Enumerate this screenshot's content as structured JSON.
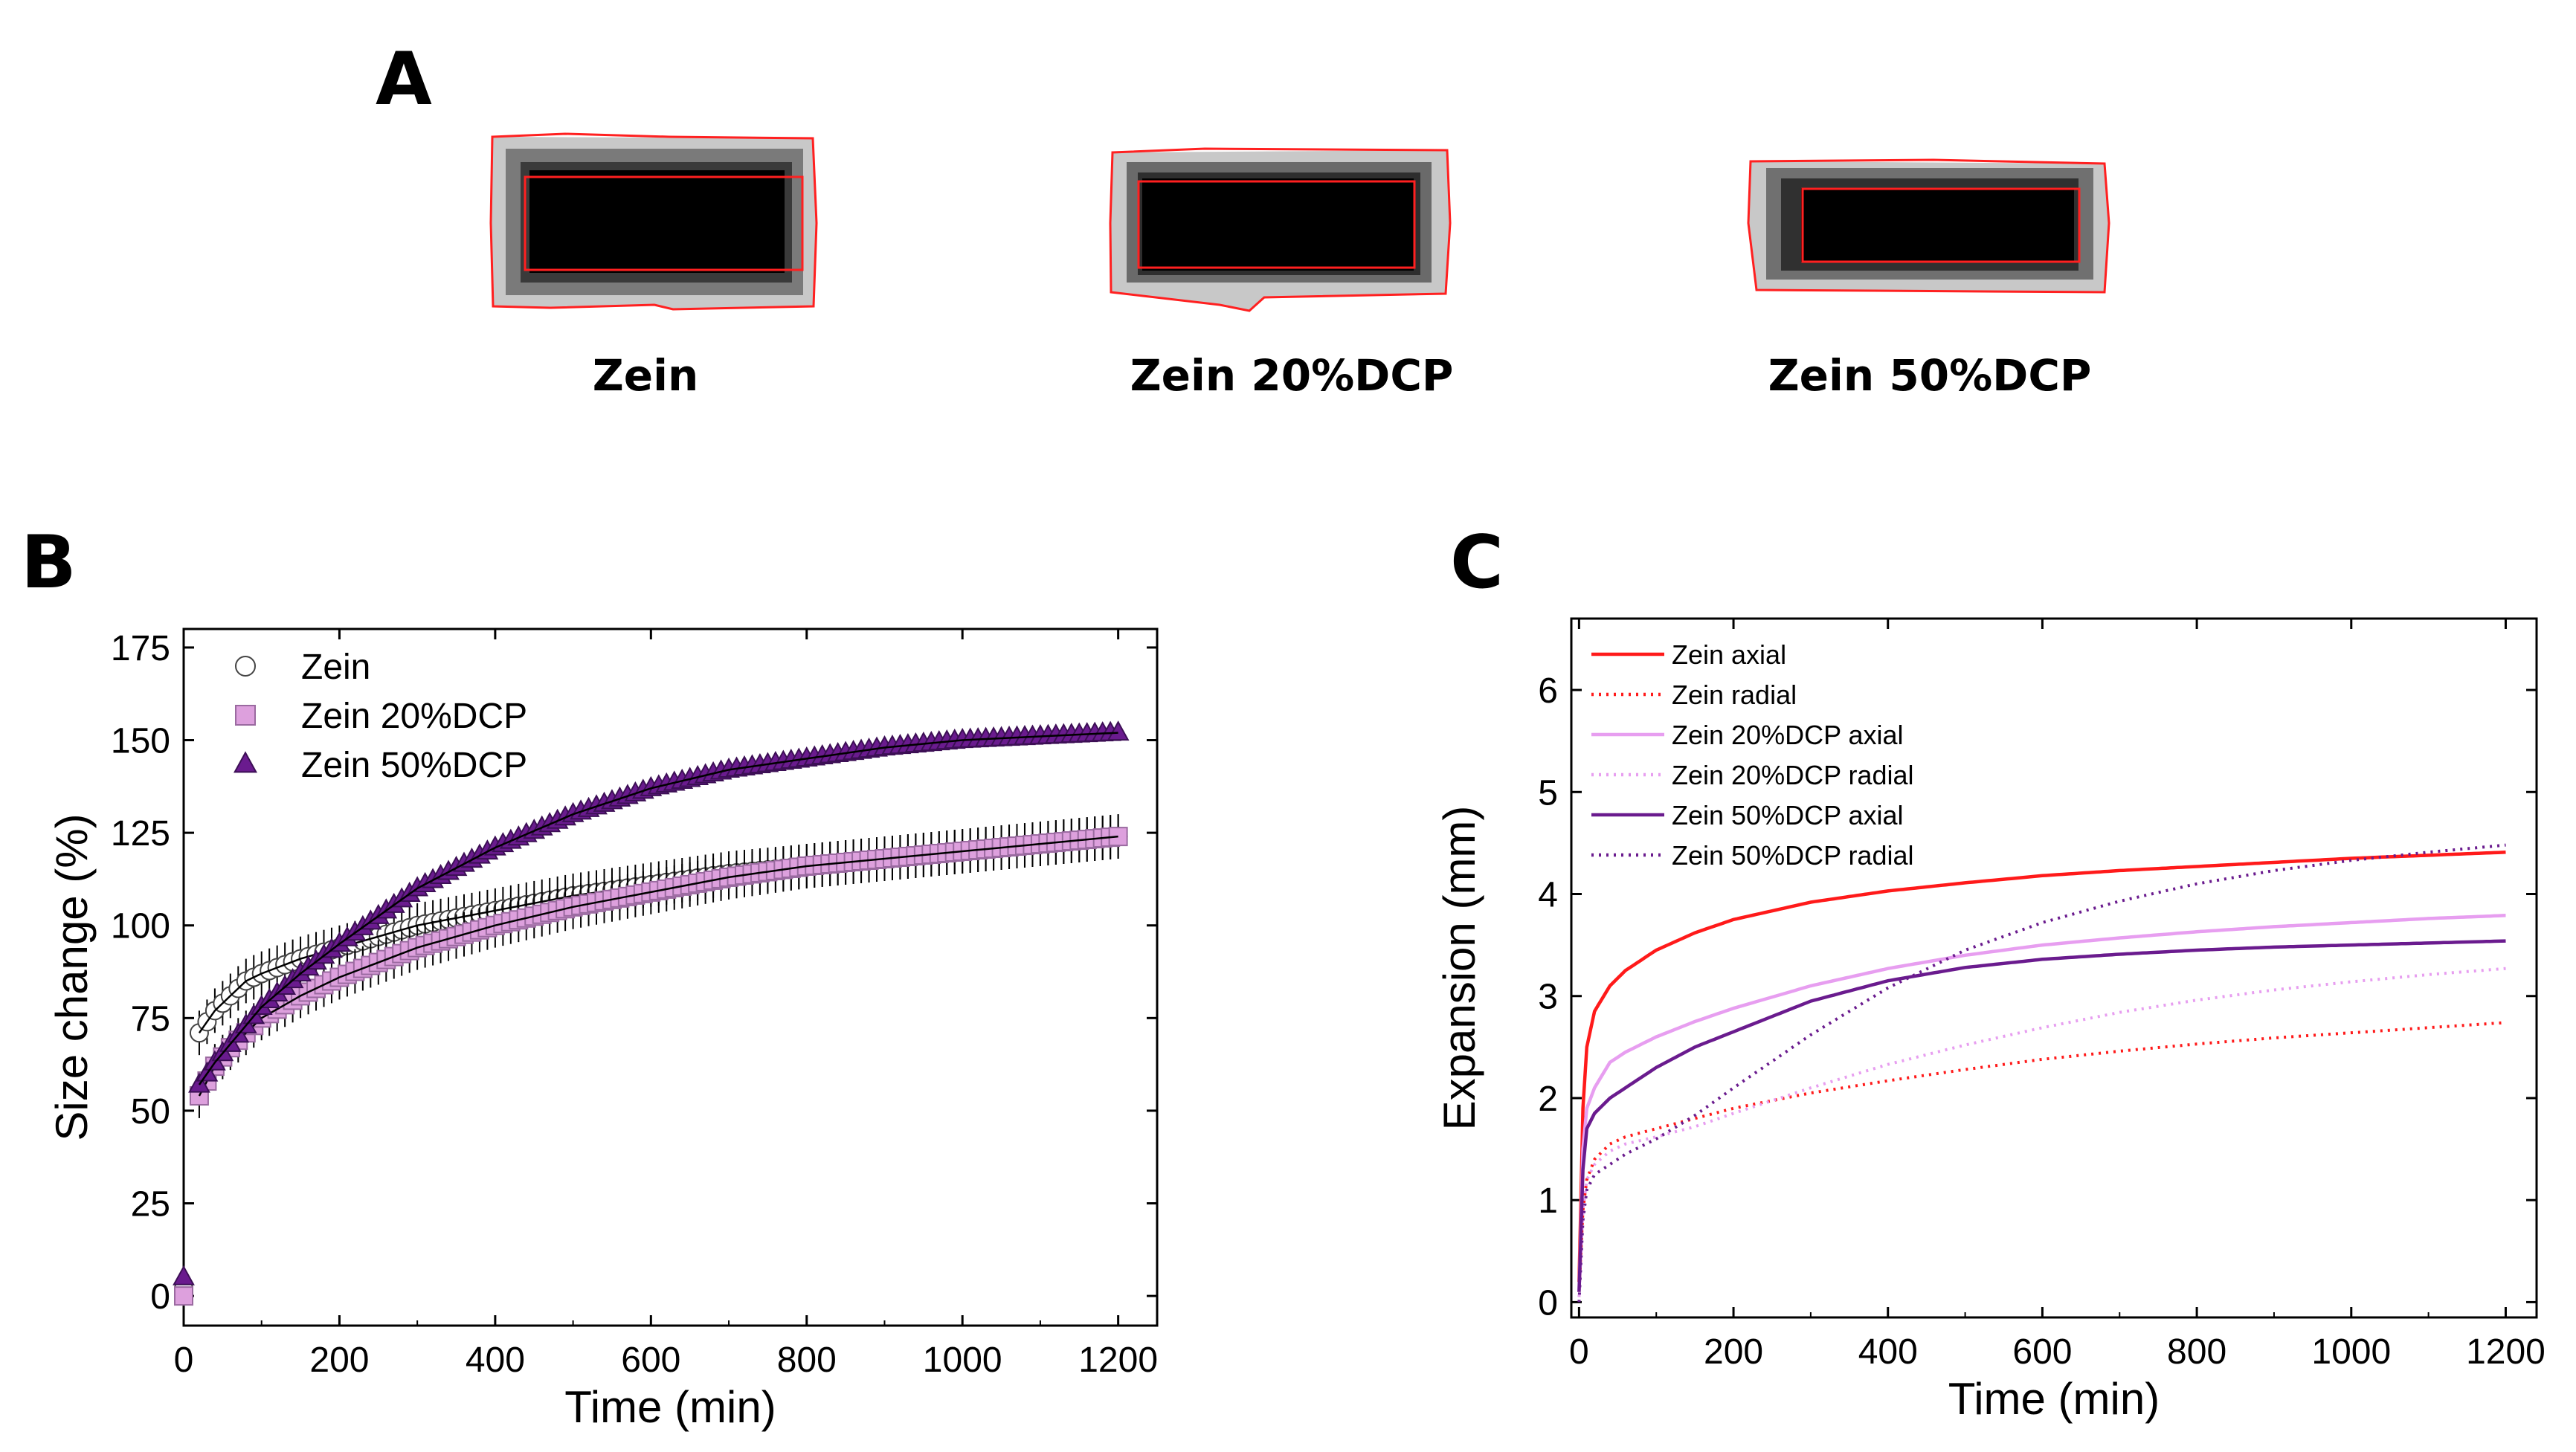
{
  "panels": {
    "a": "A",
    "b": "B",
    "c": "C"
  },
  "samples": [
    "Zein",
    "Zein 20%DCP",
    "Zein 50%DCP"
  ],
  "colors": {
    "zein": "#ff1a1a",
    "dcp20": "#e79ef0",
    "dcp20_marker": "#dda0dd",
    "dcp50": "#6a1b8e",
    "outline": "#ff2020"
  },
  "chart_data": [
    {
      "type": "scatter",
      "panel": "B",
      "title": "",
      "xlabel": "Time (min)",
      "ylabel": "Size change (%)",
      "xlim": [
        0,
        1250
      ],
      "ylim": [
        -8,
        180
      ],
      "x_ticks": [
        "0",
        "200",
        "400",
        "600",
        "800",
        "1000",
        "1200"
      ],
      "y_ticks": [
        "0",
        "25",
        "50",
        "75",
        "100",
        "125",
        "150",
        "175"
      ],
      "legend": [
        "Zein",
        "Zein 20%DCP",
        "Zein 50%DCP"
      ],
      "series": [
        {
          "name": "Zein",
          "marker": "circle",
          "x": [
            0,
            20,
            40,
            60,
            80,
            100,
            150,
            200,
            300,
            400,
            500,
            600,
            700,
            800,
            900,
            1000,
            1100,
            1200
          ],
          "y": [
            2,
            71,
            77,
            81,
            85,
            87,
            91,
            94,
            100,
            104,
            108,
            111,
            114,
            116,
            118,
            120,
            122,
            124
          ],
          "error": 6
        },
        {
          "name": "Zein 20%DCP",
          "marker": "square",
          "x": [
            0,
            20,
            40,
            60,
            80,
            100,
            150,
            200,
            300,
            400,
            500,
            600,
            700,
            800,
            900,
            1000,
            1100,
            1200
          ],
          "y": [
            0,
            54,
            62,
            67,
            71,
            75,
            81,
            86,
            94,
            100,
            105,
            109,
            113,
            116,
            118,
            120,
            122,
            124
          ],
          "error": 6
        },
        {
          "name": "Zein 50%DCP",
          "marker": "triangle",
          "x": [
            0,
            20,
            40,
            60,
            80,
            100,
            150,
            200,
            300,
            400,
            500,
            600,
            700,
            800,
            900,
            1000,
            1100,
            1200
          ],
          "y": [
            5,
            57,
            63,
            68,
            73,
            78,
            87,
            95,
            110,
            121,
            130,
            137,
            142,
            145,
            148,
            150,
            151,
            152
          ],
          "error": 2
        }
      ]
    },
    {
      "type": "line",
      "panel": "C",
      "title": "",
      "xlabel": "Time (min)",
      "ylabel": "Expansion (mm)",
      "xlim": [
        -10,
        1240
      ],
      "ylim": [
        -0.15,
        6.7
      ],
      "x_ticks": [
        "0",
        "200",
        "400",
        "600",
        "800",
        "1000",
        "1200"
      ],
      "y_ticks": [
        "0",
        "1",
        "2",
        "3",
        "4",
        "5",
        "6"
      ],
      "legend": [
        "Zein axial",
        "Zein radial",
        "Zein 20%DCP axial",
        "Zein 20%DCP radial",
        "Zein 50%DCP axial",
        "Zein 50%DCP radial"
      ],
      "series": [
        {
          "name": "Zein axial",
          "style": "solid",
          "x": [
            0,
            5,
            10,
            20,
            40,
            60,
            100,
            150,
            200,
            300,
            400,
            500,
            600,
            700,
            800,
            900,
            1000,
            1100,
            1200
          ],
          "y": [
            0.2,
            1.9,
            2.5,
            2.85,
            3.1,
            3.25,
            3.45,
            3.62,
            3.75,
            3.92,
            4.03,
            4.11,
            4.18,
            4.23,
            4.27,
            4.31,
            4.35,
            4.38,
            4.41
          ]
        },
        {
          "name": "Zein radial",
          "style": "dotted",
          "x": [
            0,
            5,
            10,
            20,
            40,
            60,
            100,
            150,
            200,
            300,
            400,
            500,
            600,
            700,
            800,
            900,
            1000,
            1100,
            1200
          ],
          "y": [
            0.1,
            0.9,
            1.2,
            1.4,
            1.55,
            1.62,
            1.7,
            1.8,
            1.9,
            2.05,
            2.17,
            2.28,
            2.38,
            2.46,
            2.53,
            2.59,
            2.64,
            2.69,
            2.74
          ]
        },
        {
          "name": "Zein 20%DCP axial",
          "style": "solid",
          "x": [
            0,
            5,
            10,
            20,
            40,
            60,
            100,
            150,
            200,
            300,
            400,
            500,
            600,
            700,
            800,
            900,
            1000,
            1100,
            1200
          ],
          "y": [
            0.1,
            1.5,
            1.9,
            2.1,
            2.35,
            2.45,
            2.6,
            2.75,
            2.88,
            3.1,
            3.27,
            3.4,
            3.5,
            3.57,
            3.63,
            3.68,
            3.72,
            3.76,
            3.79
          ]
        },
        {
          "name": "Zein 20%DCP radial",
          "style": "dotted",
          "x": [
            0,
            5,
            10,
            20,
            40,
            60,
            100,
            150,
            200,
            300,
            400,
            500,
            600,
            700,
            800,
            900,
            1000,
            1100,
            1200
          ],
          "y": [
            0.05,
            0.9,
            1.2,
            1.35,
            1.48,
            1.55,
            1.62,
            1.72,
            1.85,
            2.1,
            2.33,
            2.52,
            2.69,
            2.84,
            2.96,
            3.06,
            3.14,
            3.21,
            3.27
          ]
        },
        {
          "name": "Zein 50%DCP axial",
          "style": "solid",
          "x": [
            0,
            5,
            10,
            20,
            40,
            60,
            100,
            150,
            200,
            300,
            400,
            500,
            600,
            700,
            800,
            900,
            1000,
            1100,
            1200
          ],
          "y": [
            0.1,
            1.3,
            1.7,
            1.85,
            2.0,
            2.1,
            2.3,
            2.5,
            2.65,
            2.95,
            3.15,
            3.28,
            3.36,
            3.41,
            3.45,
            3.48,
            3.5,
            3.52,
            3.54
          ]
        },
        {
          "name": "Zein 50%DCP radial",
          "style": "dotted",
          "x": [
            0,
            5,
            10,
            20,
            40,
            60,
            100,
            150,
            200,
            300,
            400,
            500,
            600,
            700,
            800,
            900,
            1000,
            1100,
            1200
          ],
          "y": [
            0.0,
            0.8,
            1.1,
            1.25,
            1.35,
            1.45,
            1.6,
            1.83,
            2.1,
            2.62,
            3.08,
            3.45,
            3.72,
            3.93,
            4.1,
            4.23,
            4.33,
            4.41,
            4.48
          ]
        }
      ]
    }
  ]
}
